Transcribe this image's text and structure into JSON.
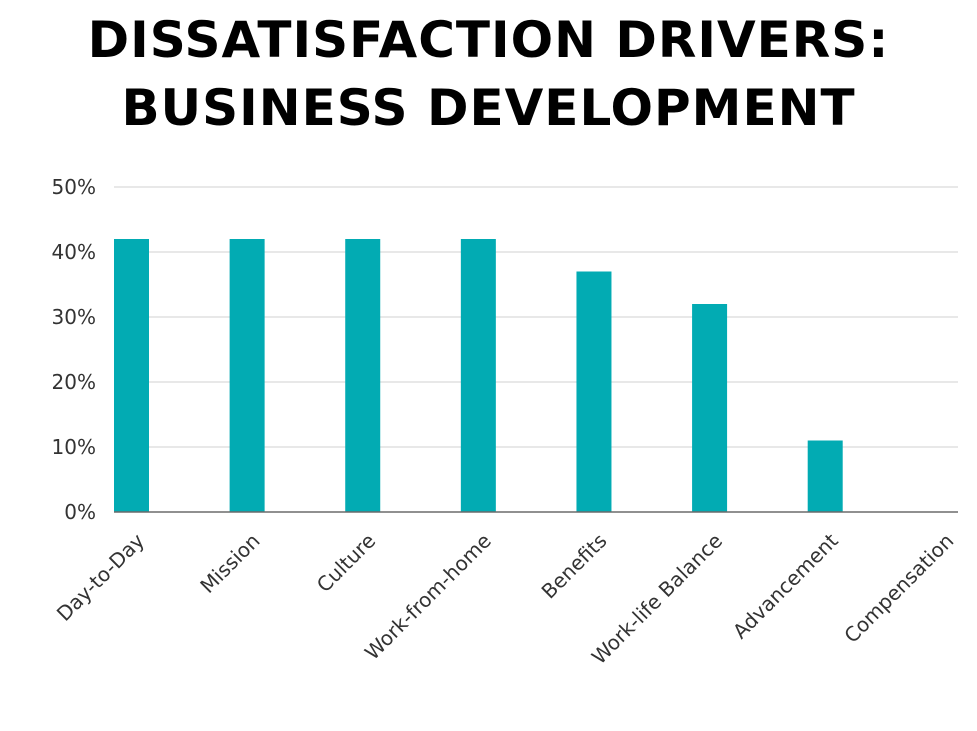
{
  "chart_data": {
    "type": "bar",
    "title_lines": [
      "DISSATISFACTION DRIVERS:",
      "BUSINESS DEVELOPMENT"
    ],
    "categories": [
      "Day-to-Day",
      "Mission",
      "Culture",
      "Work-from-home",
      "Benefits",
      "Work-life Balance",
      "Advancement",
      "Compensation"
    ],
    "values": [
      42,
      42,
      42,
      42,
      37,
      32,
      11,
      0
    ],
    "ylim": [
      0,
      50
    ],
    "yticks": [
      0,
      10,
      20,
      30,
      40,
      50
    ],
    "ytick_labels": [
      "0%",
      "10%",
      "20%",
      "30%",
      "40%",
      "50%"
    ],
    "xlabel": "",
    "ylabel": "",
    "grid": true,
    "bar_color": "#02abb3",
    "grid_color": "#d9d9d9",
    "axis_color": "#6b6b6b"
  }
}
